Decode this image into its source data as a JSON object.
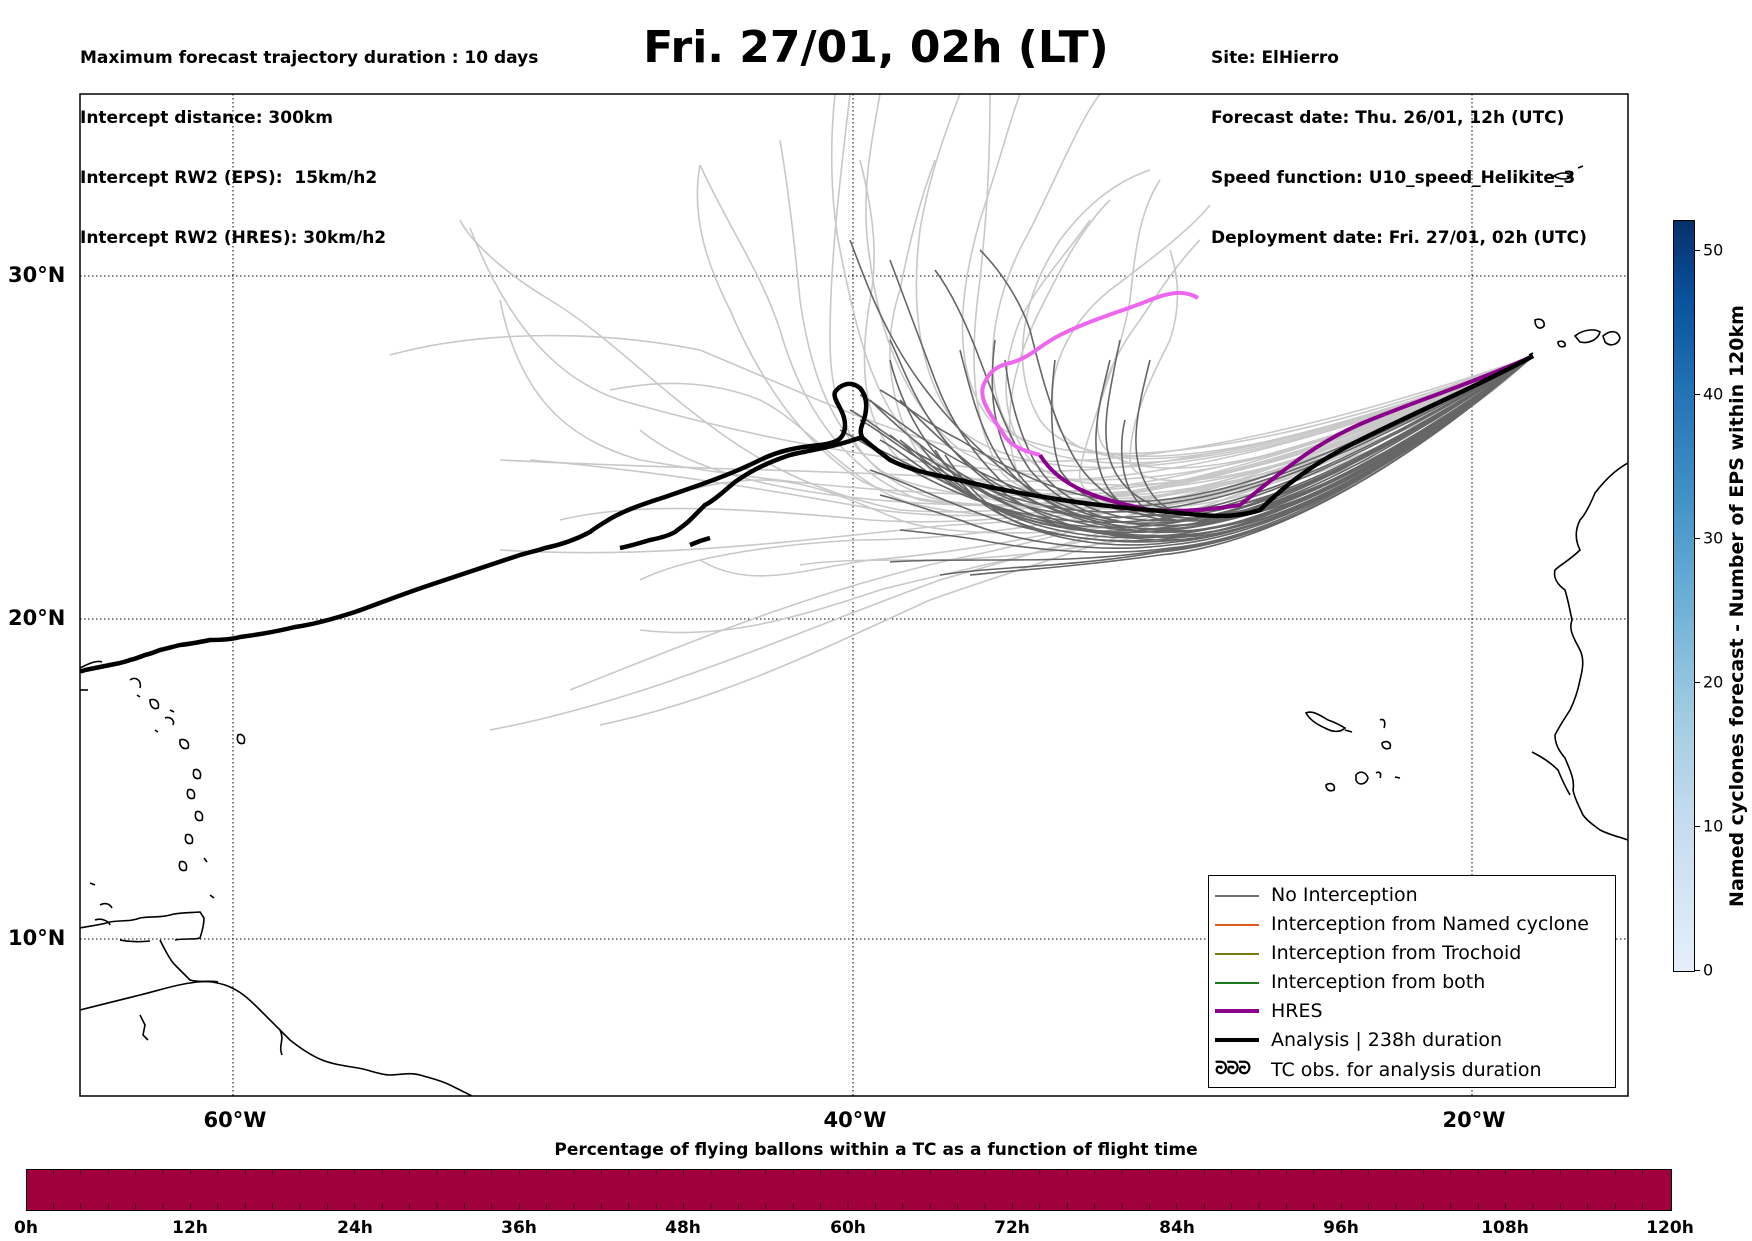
{
  "header": {
    "left_lines": [
      "Maximum forecast trajectory duration : 10 days",
      "Intercept distance: 300km",
      "Intercept RW2 (EPS):  15km/h2",
      "Intercept RW2 (HRES): 30km/h2"
    ],
    "title": "Fri. 27/01, 02h (LT)",
    "right_lines": [
      "Site: ElHierro",
      "Forecast date: Thu. 26/01, 12h (UTC)",
      "Speed function: U10_speed_Helikite_3",
      "Deployment date: Fri. 27/01, 02h (UTC)"
    ]
  },
  "map": {
    "lat_labels": [
      "30°N",
      "20°N",
      "10°N"
    ],
    "lon_labels": [
      "60°W",
      "40°W",
      "20°W"
    ],
    "gridline_style": "dotted"
  },
  "legend": {
    "items": [
      {
        "label": "No Interception",
        "color": "#707070",
        "style": "thin"
      },
      {
        "label": "Interception from Named cyclone",
        "color": "#e05a1a",
        "style": "thin"
      },
      {
        "label": "Interception from Trochoid",
        "color": "#7a7a10",
        "style": "thin"
      },
      {
        "label": "Interception from both",
        "color": "#1a7a1a",
        "style": "thin"
      },
      {
        "label": "HRES",
        "color": "#8b008b",
        "style": "thick"
      },
      {
        "label": "Analysis | 238h duration",
        "color": "#000000",
        "style": "thick"
      },
      {
        "label": "TC obs. for analysis duration",
        "color": "#000000",
        "style": "symbol",
        "symbol": "ᘒᘒᘒ"
      }
    ]
  },
  "colorbar_vertical": {
    "label": "Named cyclones forecast - Number of EPS within 120km",
    "ticks": [
      "0",
      "10",
      "20",
      "30",
      "40",
      "50"
    ]
  },
  "colorbar_horizontal": {
    "title": "Percentage of flying ballons within a TC as a function of flight time",
    "ticks": [
      "0h",
      "12h",
      "24h",
      "36h",
      "48h",
      "60h",
      "72h",
      "84h",
      "96h",
      "108h",
      "120h"
    ],
    "fill_color": "#a1003f"
  },
  "colors": {
    "eps_faint": "#c8c8c8",
    "eps_dark": "#666666",
    "hres_forecast": "#ee66ee",
    "hres": "#8b008b",
    "analysis": "#000000"
  }
}
